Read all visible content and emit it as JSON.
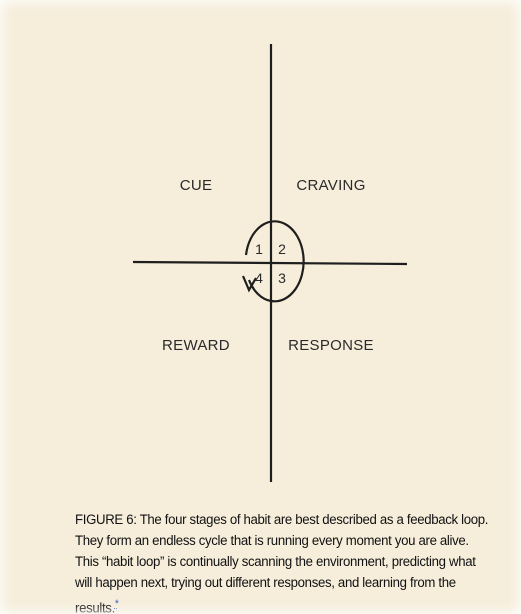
{
  "diagram": {
    "quadrants": [
      {
        "key": "cue",
        "label": "CUE",
        "number": "1"
      },
      {
        "key": "craving",
        "label": "CRAVING",
        "number": "2"
      },
      {
        "key": "response",
        "label": "RESPONSE",
        "number": "3"
      },
      {
        "key": "reward",
        "label": "REWARD",
        "number": "4"
      }
    ]
  },
  "caption": {
    "text": "FIGURE 6: The four stages of habit are best described as a feedback loop. They form an endless cycle that is running every moment you are alive. This “habit loop” is continually scanning the environment, predicting what will happen next, trying out different responses, and learning from the results.",
    "footnote_marker": "*"
  },
  "colors": {
    "background": "#f6eedb",
    "ink": "#1e1e1e"
  }
}
